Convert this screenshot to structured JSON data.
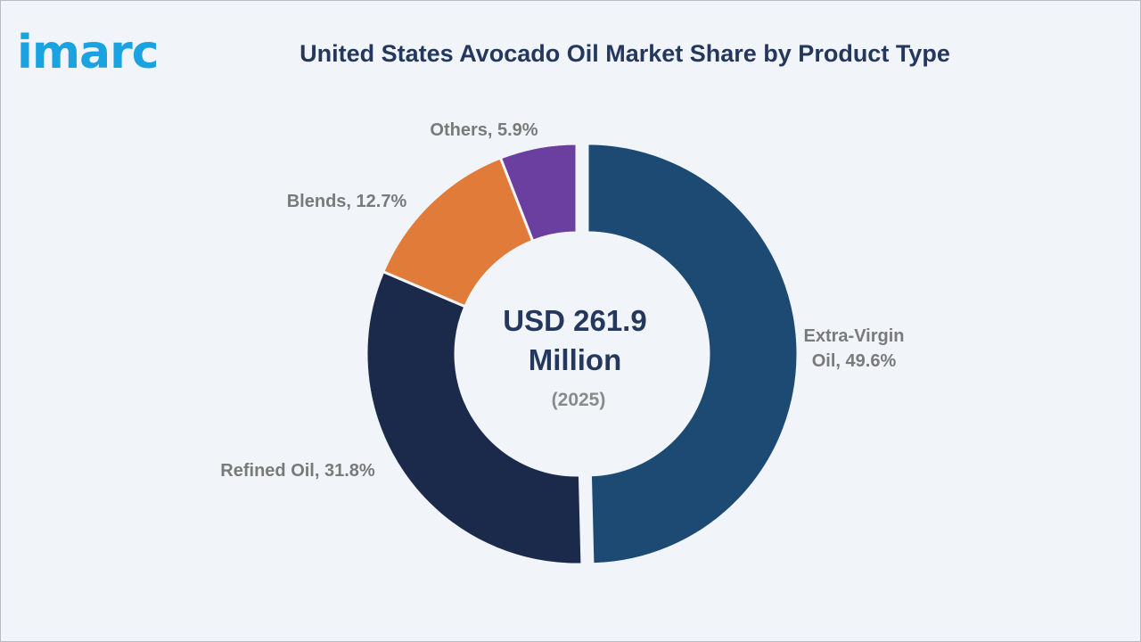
{
  "brand": {
    "logo_text": "imarc",
    "logo_color": "#1aa3e0"
  },
  "chart_data": {
    "type": "pie",
    "subtype": "donut",
    "title": "United States Avocado Oil Market Share by Product Type",
    "center_value": "USD 261.9 Million",
    "center_value_lines": [
      "USD 261.9",
      "Million"
    ],
    "center_year": "(2025)",
    "unit": "%",
    "categories": [
      "Extra-Virgin Oil",
      "Refined Oil",
      "Blends",
      "Others"
    ],
    "values": [
      49.6,
      31.8,
      12.7,
      5.9
    ],
    "labels": [
      [
        "Extra-Virgin",
        "Oil, 49.6%"
      ],
      [
        "Refined Oil, 31.8%"
      ],
      [
        "Blends, 12.7%"
      ],
      [
        "Others, 5.9%"
      ]
    ],
    "colors": [
      "#1d4a73",
      "#1b2a4a",
      "#e07b39",
      "#6b3fa0"
    ],
    "exploded_category": "Extra-Virgin Oil",
    "legend": "none"
  }
}
